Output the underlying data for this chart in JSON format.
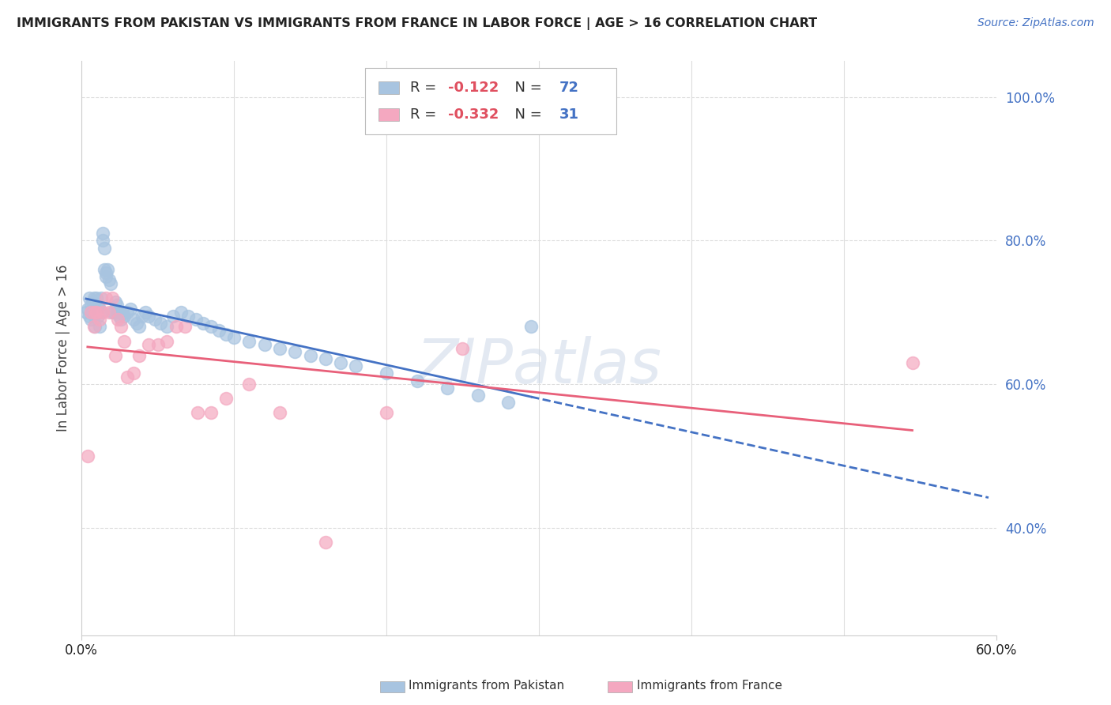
{
  "title": "IMMIGRANTS FROM PAKISTAN VS IMMIGRANTS FROM FRANCE IN LABOR FORCE | AGE > 16 CORRELATION CHART",
  "source": "Source: ZipAtlas.com",
  "ylabel": "In Labor Force | Age > 16",
  "pakistan_R": -0.122,
  "pakistan_N": 72,
  "france_R": -0.332,
  "france_N": 31,
  "pakistan_color": "#a8c4e0",
  "france_color": "#f4a8c0",
  "pakistan_line_color": "#4472c4",
  "france_line_color": "#e8607a",
  "xlim": [
    0.0,
    0.6
  ],
  "ylim": [
    0.25,
    1.05
  ],
  "yticks": [
    0.4,
    0.6,
    0.8,
    1.0
  ],
  "ytick_labels": [
    "40.0%",
    "60.0%",
    "80.0%",
    "100.0%"
  ],
  "xtick_vals": [
    0.0,
    0.6
  ],
  "xtick_labels": [
    "0.0%",
    "60.0%"
  ],
  "watermark": "ZIPatlas",
  "background_color": "#ffffff",
  "grid_color": "#dddddd",
  "legend_R_color": "#e05060",
  "legend_N_color": "#4472c4",
  "pakistan_x": [
    0.003,
    0.004,
    0.005,
    0.005,
    0.006,
    0.006,
    0.007,
    0.007,
    0.008,
    0.008,
    0.009,
    0.009,
    0.01,
    0.01,
    0.011,
    0.011,
    0.012,
    0.012,
    0.013,
    0.013,
    0.014,
    0.014,
    0.015,
    0.015,
    0.016,
    0.016,
    0.017,
    0.018,
    0.019,
    0.02,
    0.021,
    0.022,
    0.023,
    0.024,
    0.025,
    0.026,
    0.027,
    0.028,
    0.03,
    0.032,
    0.034,
    0.036,
    0.038,
    0.04,
    0.042,
    0.044,
    0.048,
    0.052,
    0.056,
    0.06,
    0.065,
    0.07,
    0.075,
    0.08,
    0.085,
    0.09,
    0.095,
    0.1,
    0.11,
    0.12,
    0.13,
    0.14,
    0.15,
    0.16,
    0.17,
    0.18,
    0.2,
    0.22,
    0.24,
    0.26,
    0.28,
    0.295
  ],
  "pakistan_y": [
    0.7,
    0.705,
    0.695,
    0.72,
    0.71,
    0.69,
    0.715,
    0.7,
    0.72,
    0.695,
    0.705,
    0.68,
    0.7,
    0.72,
    0.71,
    0.695,
    0.705,
    0.68,
    0.7,
    0.72,
    0.8,
    0.81,
    0.79,
    0.76,
    0.755,
    0.75,
    0.76,
    0.745,
    0.74,
    0.7,
    0.7,
    0.715,
    0.71,
    0.7,
    0.695,
    0.69,
    0.7,
    0.695,
    0.7,
    0.705,
    0.69,
    0.685,
    0.68,
    0.695,
    0.7,
    0.695,
    0.69,
    0.685,
    0.68,
    0.695,
    0.7,
    0.695,
    0.69,
    0.685,
    0.68,
    0.675,
    0.67,
    0.665,
    0.66,
    0.655,
    0.65,
    0.645,
    0.64,
    0.635,
    0.63,
    0.625,
    0.615,
    0.605,
    0.595,
    0.585,
    0.575,
    0.68
  ],
  "france_x": [
    0.004,
    0.006,
    0.008,
    0.009,
    0.01,
    0.012,
    0.014,
    0.016,
    0.018,
    0.02,
    0.022,
    0.024,
    0.026,
    0.028,
    0.03,
    0.034,
    0.038,
    0.044,
    0.05,
    0.056,
    0.062,
    0.068,
    0.076,
    0.085,
    0.095,
    0.11,
    0.13,
    0.16,
    0.2,
    0.25,
    0.545
  ],
  "france_y": [
    0.5,
    0.7,
    0.68,
    0.7,
    0.7,
    0.69,
    0.7,
    0.72,
    0.7,
    0.72,
    0.64,
    0.69,
    0.68,
    0.66,
    0.61,
    0.615,
    0.64,
    0.655,
    0.655,
    0.66,
    0.68,
    0.68,
    0.56,
    0.56,
    0.58,
    0.6,
    0.56,
    0.38,
    0.56,
    0.65,
    0.63
  ]
}
